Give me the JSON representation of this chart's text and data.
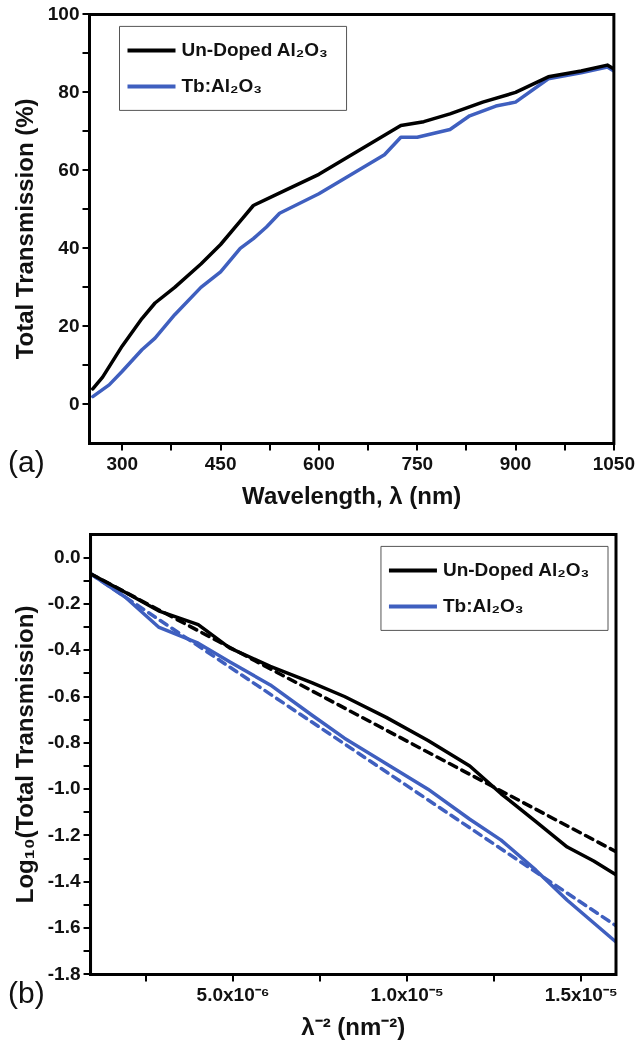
{
  "chart_data": [
    {
      "type": "line",
      "xlabel": "Wavelength, λ (nm)",
      "ylabel": "Total Transmission (%)",
      "xlim": [
        250,
        1050
      ],
      "ylim": [
        -10,
        100
      ],
      "xticks": [
        300,
        {
          "value": 375,
          "label": null
        },
        450,
        {
          "value": 525,
          "label": null
        },
        600,
        {
          "value": 675,
          "label": null
        },
        750,
        {
          "value": 825,
          "label": null
        },
        900,
        {
          "value": 975,
          "label": null
        },
        1050
      ],
      "yticks": [
        0,
        {
          "value": 10,
          "label": null
        },
        20,
        {
          "value": 30,
          "label": null
        },
        40,
        {
          "value": 50,
          "label": null
        },
        60,
        {
          "value": 70,
          "label": null
        },
        80,
        {
          "value": 90,
          "label": null
        },
        100
      ],
      "grid": false,
      "legend": "top left",
      "marker": "none",
      "annotations": [
        "(a)"
      ],
      "series": [
        {
          "name": "Un-Doped Al₂O₃",
          "color": "#000000",
          "line_style": "solid",
          "x": [
            255,
            270,
            300,
            330,
            350,
            380,
            420,
            450,
            480,
            500,
            550,
            600,
            650,
            700,
            725,
            760,
            800,
            850,
            900,
            950,
            1000,
            1040,
            1050
          ],
          "values": [
            4,
            7,
            15,
            22,
            26,
            30,
            36,
            41,
            47,
            51,
            55,
            59,
            64,
            69,
            71.5,
            72.5,
            74.5,
            77.5,
            80,
            84,
            85.5,
            87,
            86
          ]
        },
        {
          "name": "Tb:Al₂O₃",
          "color": "#3f5fbf",
          "line_style": "solid",
          "x": [
            255,
            280,
            300,
            330,
            350,
            380,
            420,
            450,
            480,
            500,
            520,
            540,
            600,
            650,
            700,
            725,
            750,
            800,
            830,
            870,
            900,
            950,
            1000,
            1040,
            1050
          ],
          "values": [
            2,
            5,
            8.5,
            14,
            17,
            23,
            30,
            34,
            40,
            42.5,
            45.5,
            49,
            54,
            59,
            64,
            68.5,
            68.5,
            70.5,
            74,
            76.5,
            77.5,
            83.5,
            85,
            86.5,
            85.5
          ]
        }
      ]
    },
    {
      "type": "line",
      "xlabel": "λ⁻² (nm⁻²)",
      "ylabel": "Log₁₀(Total Transmission)",
      "xlim": [
        9.07e-07,
        1.6e-05
      ],
      "ylim": [
        -1.8,
        0.1
      ],
      "xticks": [
        {
          "value": 2.5e-06,
          "label": null
        },
        {
          "value": 5e-06,
          "label": "5.0x10⁻⁶"
        },
        {
          "value": 7.5e-06,
          "label": null
        },
        {
          "value": 1e-05,
          "label": "1.0x10⁻⁵"
        },
        {
          "value": 1.25e-05,
          "label": null
        },
        {
          "value": 1.5e-05,
          "label": "1.5x10⁻⁵"
        }
      ],
      "yticks": [
        {
          "value": -1.8,
          "label": "-1.8"
        },
        {
          "value": -1.7,
          "label": null
        },
        {
          "value": -1.6,
          "label": "-1.6"
        },
        {
          "value": -1.5,
          "label": null
        },
        {
          "value": -1.4,
          "label": "-1.4"
        },
        {
          "value": -1.3,
          "label": null
        },
        {
          "value": -1.2,
          "label": "-1.2"
        },
        {
          "value": -1.1,
          "label": null
        },
        {
          "value": -1,
          "label": "-1.0"
        },
        {
          "value": -0.9,
          "label": null
        },
        {
          "value": -0.8,
          "label": "-0.8"
        },
        {
          "value": -0.7,
          "label": null
        },
        {
          "value": -0.6,
          "label": "-0.6"
        },
        {
          "value": -0.5,
          "label": null
        },
        {
          "value": -0.4,
          "label": "-0.4"
        },
        {
          "value": -0.3,
          "label": null
        },
        {
          "value": -0.2,
          "label": "-0.2"
        },
        {
          "value": -0.1,
          "label": null
        },
        {
          "value": 0,
          "label": "0.0"
        }
      ],
      "grid": false,
      "legend": "top right",
      "marker": "none",
      "annotations": [
        "(b)"
      ],
      "series": [
        {
          "name": "Un-Doped Al₂O₃",
          "color": "#000000",
          "line_style": "solid",
          "x": [
            9.07e-07,
            1.9e-06,
            2.86e-06,
            4e-06,
            4.9e-06,
            6.07e-06,
            7.26e-06,
            8.2e-06,
            9.4e-06,
            1.06e-05,
            1.18e-05,
            1.27e-05,
            1.37e-05,
            1.46e-05,
            1.536e-05,
            1.6e-05
          ],
          "values": [
            -0.07,
            -0.15,
            -0.23,
            -0.29,
            -0.39,
            -0.47,
            -0.54,
            -0.6,
            -0.69,
            -0.79,
            -0.9,
            -1.02,
            -1.14,
            -1.25,
            -1.31,
            -1.37
          ]
        },
        {
          "name": "Tb:Al₂O₃",
          "color": "#3f5fbf",
          "line_style": "solid",
          "x": [
            9.07e-07,
            1.9e-06,
            2.86e-06,
            4e-06,
            4.9e-06,
            6.07e-06,
            7.26e-06,
            8.2e-06,
            9.4e-06,
            1.06e-05,
            1.18e-05,
            1.27e-05,
            1.37e-05,
            1.46e-05,
            1.6e-05
          ],
          "values": [
            -0.07,
            -0.17,
            -0.3,
            -0.37,
            -0.45,
            -0.55,
            -0.68,
            -0.78,
            -0.89,
            -1.0,
            -1.13,
            -1.22,
            -1.35,
            -1.48,
            -1.66
          ]
        },
        {
          "color": "#000000",
          "line_style": "dashed",
          "x": [
            9.07e-07,
            1.6e-05
          ],
          "values": [
            -0.07,
            -1.27
          ]
        },
        {
          "color": "#3f5fbf",
          "line_style": "dashed",
          "x": [
            9.07e-07,
            1.6e-05
          ],
          "values": [
            -0.07,
            -1.59
          ]
        }
      ]
    }
  ]
}
